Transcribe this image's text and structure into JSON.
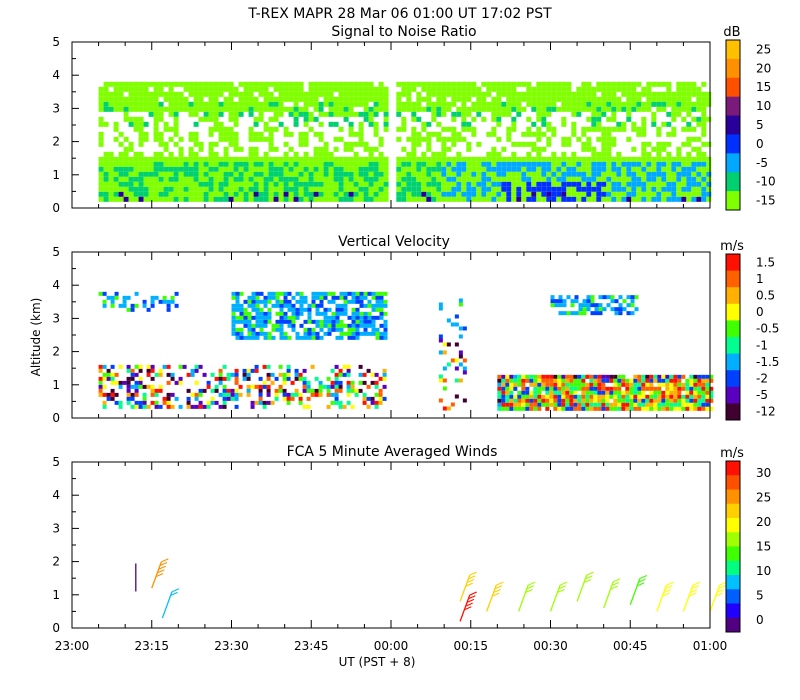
{
  "header": {
    "title": "T-REX   MAPR 28 Mar 06   01:00 UT   17:02   PST"
  },
  "x_axis": {
    "label": "UT   (PST + 8)",
    "ticks": [
      "23:00",
      "23:15",
      "23:30",
      "23:45",
      "00:00",
      "00:15",
      "00:30",
      "00:45",
      "01:00"
    ]
  },
  "y_axis": {
    "label": "Altitude  (km)",
    "ticks": [
      "0",
      "1",
      "2",
      "3",
      "4",
      "5"
    ]
  },
  "panels": [
    {
      "title": "Signal to Noise Ratio",
      "unit": "dB",
      "colorbar": {
        "labels": [
          "25",
          "20",
          "15",
          "10",
          "5",
          "0",
          "-5",
          "-10",
          "-15"
        ],
        "colors": [
          "#ffc000",
          "#ff9000",
          "#ff5000",
          "#7a1a7a",
          "#2a009a",
          "#0030ff",
          "#00a8ff",
          "#00d070",
          "#80ff00"
        ]
      }
    },
    {
      "title": "Vertical Velocity",
      "unit": "m/s",
      "colorbar": {
        "labels": [
          "1.5",
          "1",
          "0.5",
          "0",
          "-0.5",
          "-1",
          "-1.5",
          "-2",
          "-5",
          "-12"
        ],
        "colors": [
          "#ff1000",
          "#ff6000",
          "#ffb000",
          "#ffff00",
          "#40ff00",
          "#00ff90",
          "#00b0ff",
          "#0040ff",
          "#5a00c0",
          "#400030"
        ]
      }
    },
    {
      "title": "FCA 5 Minute Averaged Winds",
      "unit": "m/s",
      "colorbar": {
        "labels": [
          "30",
          "25",
          "20",
          "15",
          "10",
          "5",
          "0"
        ],
        "colors": [
          "#ff1000",
          "#ff5000",
          "#ff9000",
          "#ffd000",
          "#ffff00",
          "#a0ff00",
          "#40ff00",
          "#00ff80",
          "#00c0ff",
          "#0060ff",
          "#2000ff",
          "#500080"
        ]
      }
    }
  ],
  "chart_data": [
    {
      "type": "heatmap",
      "title": "Signal to Noise Ratio",
      "xlabel": "UT   (PST + 8)",
      "ylabel": "Altitude  (km)",
      "xlim": [
        "23:00",
        "01:00"
      ],
      "ylim": [
        0,
        5
      ],
      "colorbar_unit": "dB",
      "colorbar_range": [
        -15,
        25
      ],
      "data_segments_ut": [
        [
          "23:05",
          "23:59"
        ],
        [
          "00:01",
          "01:00"
        ]
      ],
      "data_altitude_range_km": [
        0.3,
        3.8
      ],
      "dominant_value_db": -15,
      "regions": [
        {
          "time": [
            "23:05",
            "23:59"
          ],
          "alt_km": [
            0.3,
            3.8
          ],
          "snr_db": -15
        },
        {
          "time": [
            "23:05",
            "23:59"
          ],
          "alt_km": [
            0.3,
            1.5
          ],
          "snr_db": -10
        },
        {
          "time": [
            "00:01",
            "01:00"
          ],
          "alt_km": [
            0.3,
            3.9
          ],
          "snr_db": -15
        },
        {
          "time": [
            "00:09",
            "01:00"
          ],
          "alt_km": [
            0.3,
            1.6
          ],
          "snr_db": -5
        },
        {
          "time": [
            "00:20",
            "00:40"
          ],
          "alt_km": [
            0.3,
            0.8
          ],
          "snr_db": 5
        }
      ]
    },
    {
      "type": "heatmap",
      "title": "Vertical Velocity",
      "xlabel": "UT   (PST + 8)",
      "ylabel": "Altitude  (km)",
      "xlim": [
        "23:00",
        "01:00"
      ],
      "ylim": [
        0,
        5
      ],
      "colorbar_unit": "m/s",
      "regions": [
        {
          "time": [
            "23:05",
            "23:20"
          ],
          "alt_km": [
            3.3,
            3.8
          ],
          "w_ms": 1
        },
        {
          "time": [
            "23:30",
            "23:59"
          ],
          "alt_km": [
            2.4,
            3.8
          ],
          "w_ms": -1
        },
        {
          "time": [
            "23:05",
            "23:59"
          ],
          "alt_km": [
            0.3,
            1.6
          ],
          "w_ms": -1.5
        },
        {
          "time": [
            "00:09",
            "00:14"
          ],
          "alt_km": [
            0.3,
            3.6
          ],
          "w_ms": -1
        },
        {
          "time": [
            "00:20",
            "01:00"
          ],
          "alt_km": [
            0.3,
            1.3
          ],
          "w_ms": -0.5
        },
        {
          "time": [
            "00:30",
            "00:46"
          ],
          "alt_km": [
            3.1,
            3.7
          ],
          "w_ms": -0.5
        }
      ]
    },
    {
      "type": "scatter",
      "title": "FCA 5 Minute Averaged Winds",
      "xlabel": "UT   (PST + 8)",
      "ylabel": "Altitude  (km)",
      "xlim": [
        "23:00",
        "01:00"
      ],
      "ylim": [
        0,
        5
      ],
      "colorbar_unit": "m/s",
      "colorbar_range": [
        0,
        30
      ],
      "barbs": [
        {
          "time": "23:12",
          "alt_km": 1.1,
          "speed_ms": 0
        },
        {
          "time": "23:15",
          "alt_km": 1.2,
          "speed_ms": 24
        },
        {
          "time": "23:17",
          "alt_km": 0.3,
          "speed_ms": 8
        },
        {
          "time": "00:13",
          "alt_km": 0.2,
          "speed_ms": 30
        },
        {
          "time": "00:13",
          "alt_km": 0.8,
          "speed_ms": 22
        },
        {
          "time": "00:18",
          "alt_km": 0.5,
          "speed_ms": 22
        },
        {
          "time": "00:24",
          "alt_km": 0.5,
          "speed_ms": 16
        },
        {
          "time": "00:30",
          "alt_km": 0.5,
          "speed_ms": 16
        },
        {
          "time": "00:35",
          "alt_km": 0.8,
          "speed_ms": 16
        },
        {
          "time": "00:40",
          "alt_km": 0.6,
          "speed_ms": 16
        },
        {
          "time": "00:45",
          "alt_km": 0.7,
          "speed_ms": 14
        },
        {
          "time": "00:50",
          "alt_km": 0.5,
          "speed_ms": 18
        },
        {
          "time": "00:55",
          "alt_km": 0.5,
          "speed_ms": 20
        },
        {
          "time": "01:00",
          "alt_km": 0.5,
          "speed_ms": 20
        }
      ]
    }
  ]
}
